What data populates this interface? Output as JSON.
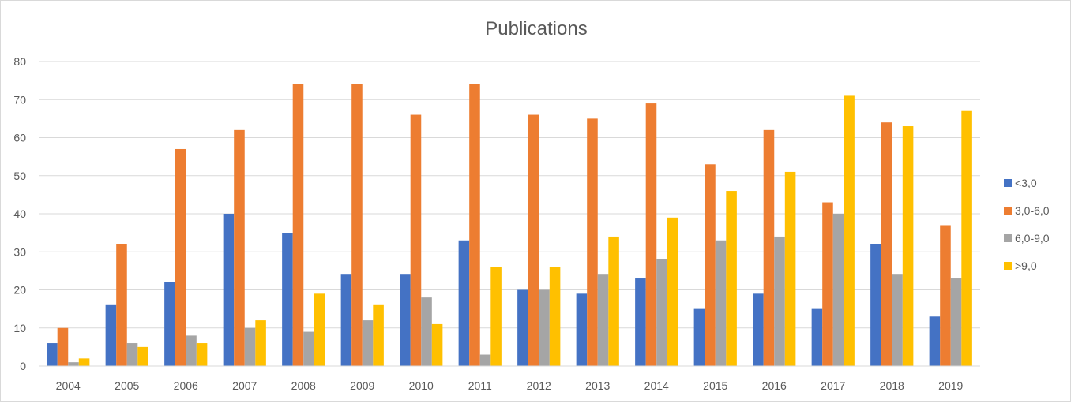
{
  "chart_data": {
    "type": "bar",
    "title": "Publications",
    "xlabel": "",
    "ylabel": "",
    "ylim": [
      0,
      80
    ],
    "yticks": [
      0,
      10,
      20,
      30,
      40,
      50,
      60,
      70,
      80
    ],
    "grid": true,
    "legend_position": "right",
    "categories": [
      "2004",
      "2005",
      "2006",
      "2007",
      "2008",
      "2009",
      "2010",
      "2011",
      "2012",
      "2013",
      "2014",
      "2015",
      "2016",
      "2017",
      "2018",
      "2019"
    ],
    "series": [
      {
        "name": "<3,0",
        "color": "#4472c4",
        "values": [
          6,
          16,
          22,
          40,
          35,
          24,
          24,
          33,
          20,
          19,
          23,
          15,
          19,
          15,
          32,
          13
        ]
      },
      {
        "name": "3,0-6,0",
        "color": "#ed7d31",
        "values": [
          10,
          32,
          57,
          62,
          74,
          74,
          66,
          74,
          66,
          65,
          69,
          53,
          62,
          43,
          64,
          37
        ]
      },
      {
        "name": "6,0-9,0",
        "color": "#a5a5a5",
        "values": [
          1,
          6,
          8,
          10,
          9,
          12,
          18,
          3,
          20,
          24,
          28,
          33,
          34,
          40,
          24,
          23
        ]
      },
      {
        "name": ">9,0",
        "color": "#ffc000",
        "values": [
          2,
          5,
          6,
          12,
          19,
          16,
          11,
          26,
          26,
          34,
          39,
          46,
          51,
          71,
          63,
          67
        ]
      }
    ]
  }
}
